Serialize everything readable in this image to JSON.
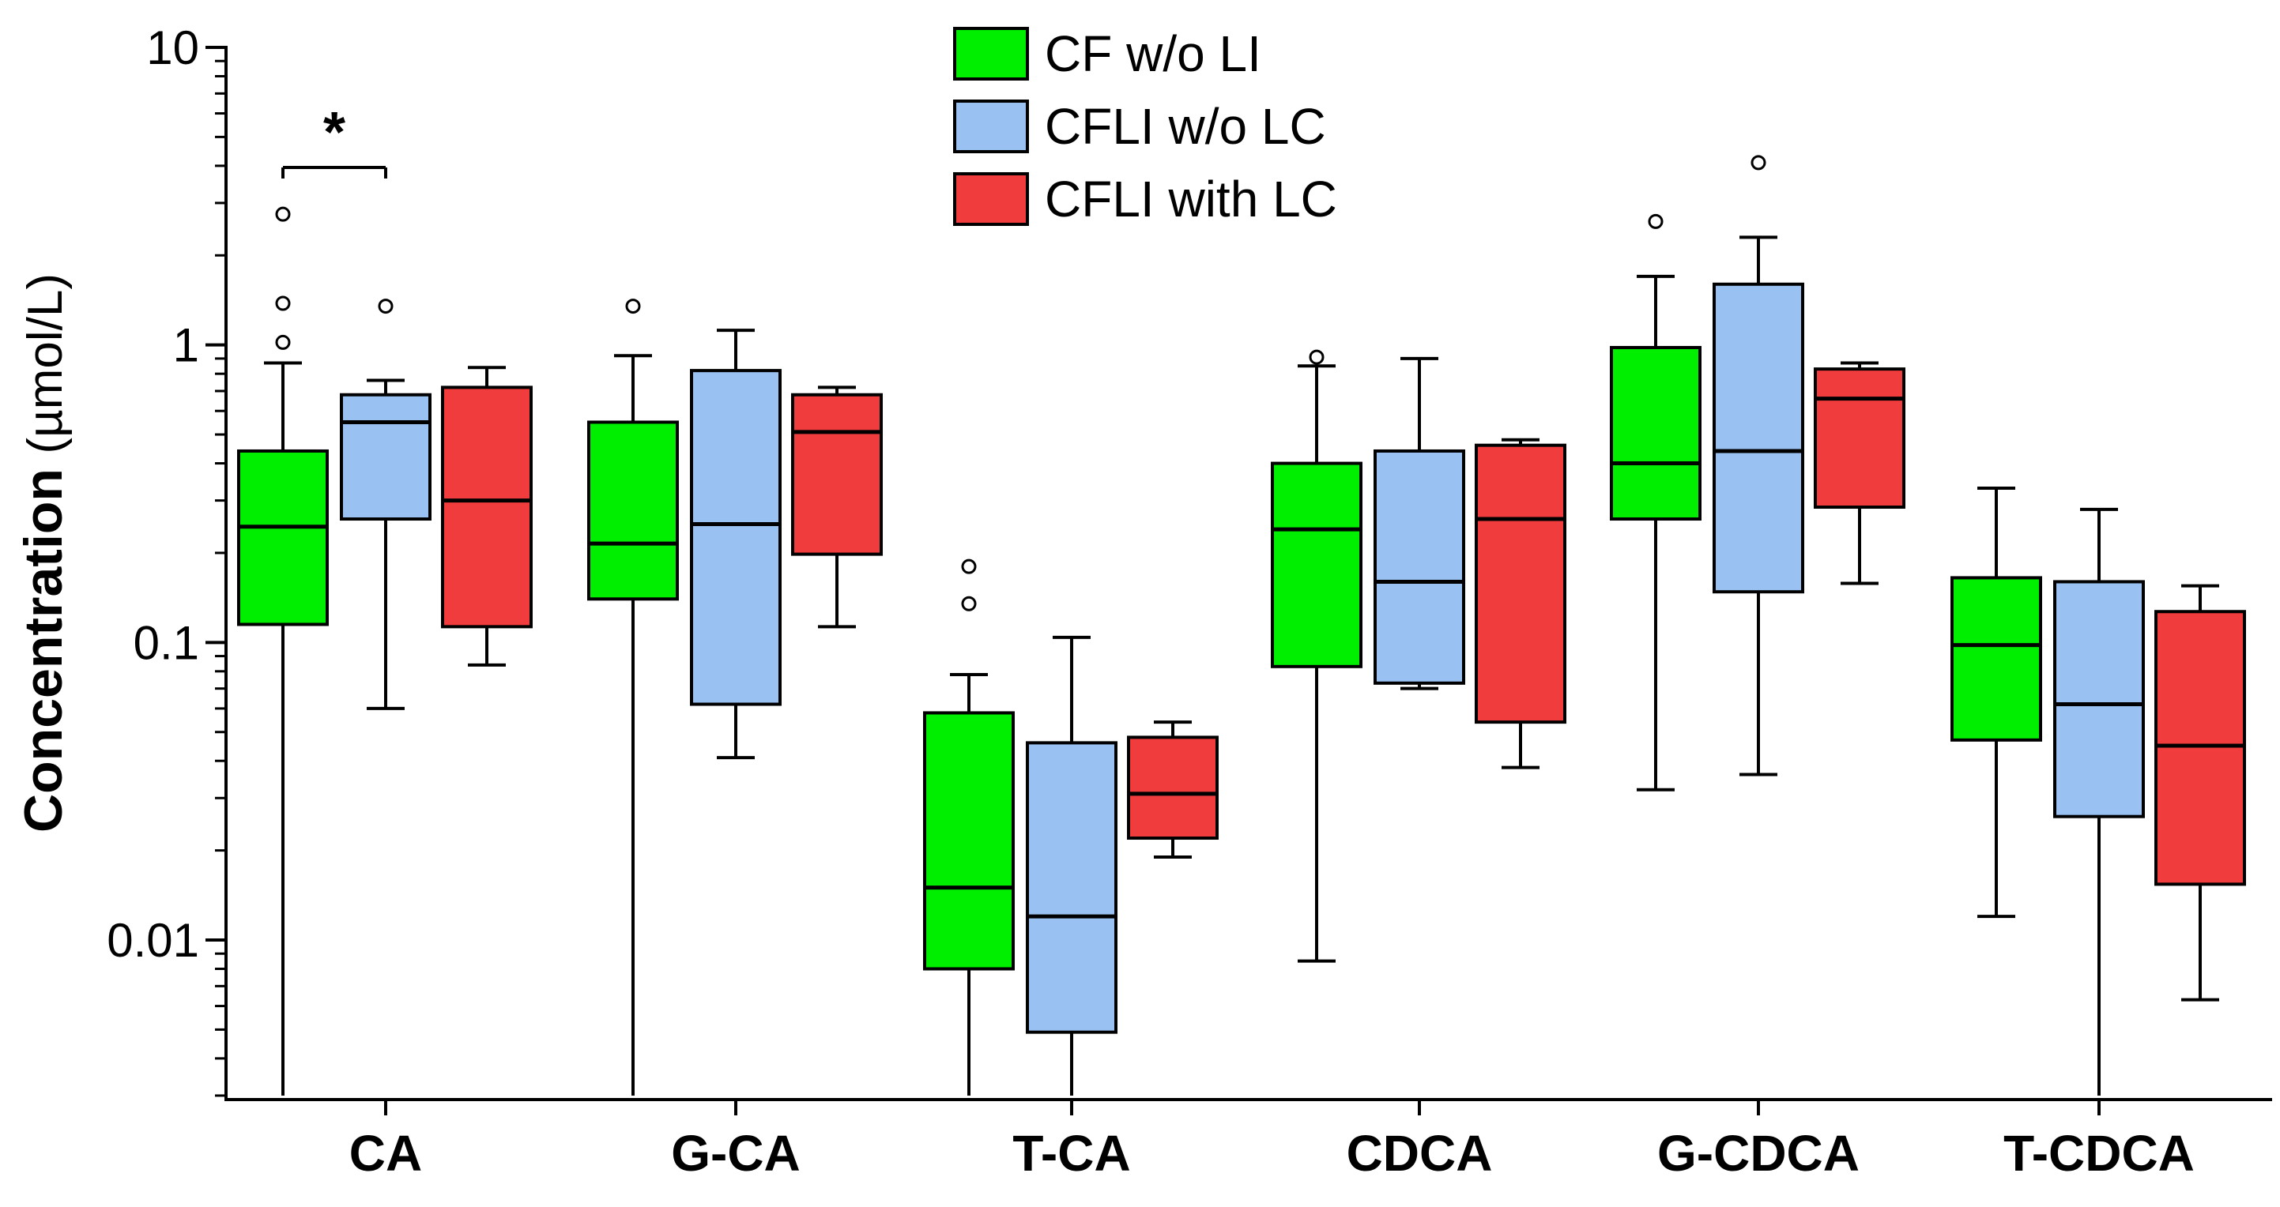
{
  "chart_data": {
    "type": "box",
    "title": "",
    "xlabel": "",
    "ylabel": "Concentration",
    "ylabel_unit": "(µmol/L)",
    "yscale": "log",
    "ylim": [
      0.003,
      10
    ],
    "y_ticks": [
      {
        "value": 0.01,
        "label": "0.01"
      },
      {
        "value": 0.1,
        "label": "0.1"
      },
      {
        "value": 1,
        "label": "1"
      },
      {
        "value": 10,
        "label": "10"
      }
    ],
    "categories": [
      "CA",
      "G-CA",
      "T-CA",
      "CDCA",
      "G-CDCA",
      "T-CDCA"
    ],
    "series": [
      {
        "name": "CF w/o LI",
        "color": "#00ee00",
        "boxes": [
          {
            "whisker_low": 0.003,
            "q1": 0.115,
            "median": 0.245,
            "q3": 0.44,
            "whisker_high": 0.87,
            "outliers": [
              1.02,
              1.38,
              2.75
            ]
          },
          {
            "whisker_low": 0.003,
            "q1": 0.14,
            "median": 0.215,
            "q3": 0.55,
            "whisker_high": 0.92,
            "outliers": [
              1.35
            ]
          },
          {
            "whisker_low": 0.003,
            "q1": 0.008,
            "median": 0.015,
            "q3": 0.058,
            "whisker_high": 0.078,
            "outliers": [
              0.135,
              0.18
            ]
          },
          {
            "whisker_low": 0.0085,
            "q1": 0.083,
            "median": 0.24,
            "q3": 0.4,
            "whisker_high": 0.85,
            "outliers": [
              0.91
            ]
          },
          {
            "whisker_low": 0.032,
            "q1": 0.26,
            "median": 0.4,
            "q3": 0.98,
            "whisker_high": 1.7,
            "outliers": [
              2.6
            ]
          },
          {
            "whisker_low": 0.012,
            "q1": 0.047,
            "median": 0.098,
            "q3": 0.165,
            "whisker_high": 0.33,
            "outliers": []
          }
        ]
      },
      {
        "name": "CFLI w/o LC",
        "color": "#99c2f2",
        "boxes": [
          {
            "whisker_low": 0.06,
            "q1": 0.26,
            "median": 0.55,
            "q3": 0.68,
            "whisker_high": 0.76,
            "outliers": [
              1.35
            ]
          },
          {
            "whisker_low": 0.041,
            "q1": 0.062,
            "median": 0.25,
            "q3": 0.82,
            "whisker_high": 1.12,
            "outliers": []
          },
          {
            "whisker_low": 0.003,
            "q1": 0.0049,
            "median": 0.012,
            "q3": 0.046,
            "whisker_high": 0.104,
            "outliers": []
          },
          {
            "whisker_low": 0.07,
            "q1": 0.073,
            "median": 0.16,
            "q3": 0.44,
            "whisker_high": 0.9,
            "outliers": []
          },
          {
            "whisker_low": 0.036,
            "q1": 0.148,
            "median": 0.44,
            "q3": 1.6,
            "whisker_high": 2.3,
            "outliers": [
              4.1
            ]
          },
          {
            "whisker_low": 0.003,
            "q1": 0.026,
            "median": 0.062,
            "q3": 0.16,
            "whisker_high": 0.28,
            "outliers": []
          }
        ]
      },
      {
        "name": "CFLI with LC",
        "color": "#f03c3c",
        "boxes": [
          {
            "whisker_low": 0.084,
            "q1": 0.113,
            "median": 0.3,
            "q3": 0.72,
            "whisker_high": 0.84,
            "outliers": []
          },
          {
            "whisker_low": 0.113,
            "q1": 0.198,
            "median": 0.51,
            "q3": 0.68,
            "whisker_high": 0.72,
            "outliers": []
          },
          {
            "whisker_low": 0.019,
            "q1": 0.022,
            "median": 0.031,
            "q3": 0.048,
            "whisker_high": 0.054,
            "outliers": []
          },
          {
            "whisker_low": 0.038,
            "q1": 0.054,
            "median": 0.26,
            "q3": 0.46,
            "whisker_high": 0.48,
            "outliers": []
          },
          {
            "whisker_low": 0.158,
            "q1": 0.285,
            "median": 0.66,
            "q3": 0.83,
            "whisker_high": 0.87,
            "outliers": []
          },
          {
            "whisker_low": 0.0063,
            "q1": 0.0154,
            "median": 0.045,
            "q3": 0.127,
            "whisker_high": 0.155,
            "outliers": []
          }
        ]
      }
    ],
    "annotations": [
      {
        "type": "significance",
        "text": "*",
        "category": "CA",
        "from_series": 0,
        "to_series": 1
      }
    ],
    "legend_position": "top-center",
    "grid": false
  }
}
